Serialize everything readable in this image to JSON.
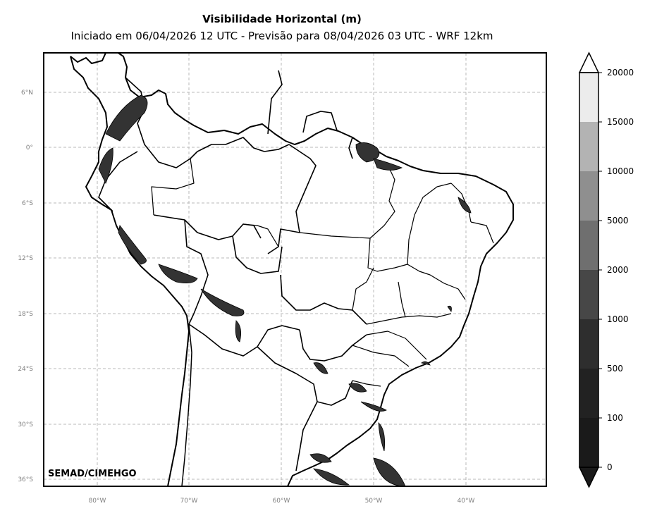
{
  "header": {
    "title": "Visibilidade Horizontal (m)",
    "subtitle": "Iniciado em 06/04/2026 12 UTC - Previsão para 08/04/2026 03 UTC - WRF 12km"
  },
  "map": {
    "credit": "SEMAD/CIMEHGO",
    "lat_labels": [
      "6°N",
      "0°",
      "6°S",
      "12°S",
      "18°S",
      "24°S",
      "30°S",
      "36°S"
    ],
    "lon_labels": [
      "80°W",
      "70°W",
      "60°W",
      "50°W",
      "40°W"
    ],
    "gridlines": "dashed",
    "colors": {
      "background": "#ffffff",
      "border": "#000000",
      "grid": "#b8b8b8",
      "tick_label": "#808080",
      "fog_shading": "#333333"
    }
  },
  "colorbar": {
    "ticks": [
      "0",
      "100",
      "500",
      "1000",
      "2000",
      "5000",
      "10000",
      "15000",
      "20000"
    ],
    "colors": [
      "#1a1a1a",
      "#222222",
      "#2e2e2e",
      "#474747",
      "#6f6f6f",
      "#8f8f8f",
      "#b3b3b3",
      "#ececec"
    ],
    "extend": "both"
  }
}
